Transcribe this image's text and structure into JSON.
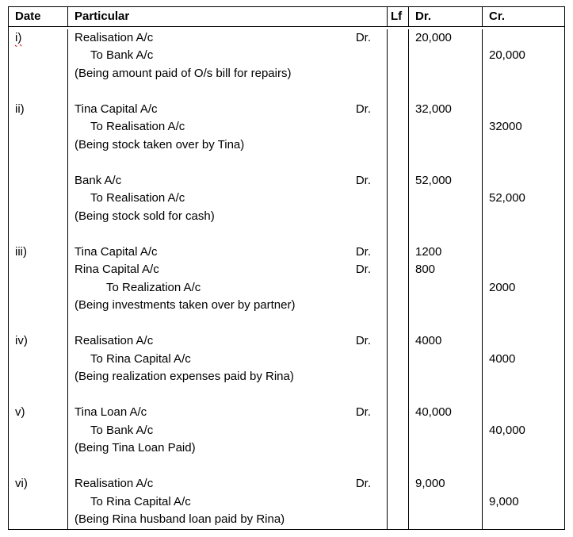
{
  "table": {
    "headers": {
      "date": "Date",
      "particular": "Particular",
      "lf": "Lf",
      "dr": "Dr.",
      "cr": "Cr."
    },
    "lines": [
      {
        "date": "i)",
        "particular": "Realisation A/c",
        "dr_marker": "Dr.",
        "dr": "20,000",
        "cr": "",
        "indent": 0,
        "spellcheck_underline": true
      },
      {
        "date": "",
        "particular": "To Bank A/c",
        "dr_marker": "",
        "dr": "",
        "cr": "20,000",
        "indent": 1
      },
      {
        "date": "",
        "particular": "(Being amount paid of O/s bill for repairs)",
        "dr_marker": "",
        "dr": "",
        "cr": "",
        "indent": 0
      },
      {
        "blank": true
      },
      {
        "date": "ii)",
        "particular": "Tina Capital A/c",
        "dr_marker": "Dr.",
        "dr": "32,000",
        "cr": "",
        "indent": 0
      },
      {
        "date": "",
        "particular": "To Realisation A/c",
        "dr_marker": "",
        "dr": "",
        "cr": "32000",
        "indent": 1
      },
      {
        "date": "",
        "particular": "(Being stock taken over by Tina)",
        "dr_marker": "",
        "dr": "",
        "cr": "",
        "indent": 0
      },
      {
        "blank": true
      },
      {
        "date": "",
        "particular": "Bank A/c",
        "dr_marker": "Dr.",
        "dr": "52,000",
        "cr": "",
        "indent": 0
      },
      {
        "date": "",
        "particular": "To Realisation A/c",
        "dr_marker": "",
        "dr": "",
        "cr": "52,000",
        "indent": 1
      },
      {
        "date": "",
        "particular": "(Being stock sold for cash)",
        "dr_marker": "",
        "dr": "",
        "cr": "",
        "indent": 0
      },
      {
        "blank": true
      },
      {
        "date": "iii)",
        "particular": "Tina Capital A/c",
        "dr_marker": "Dr.",
        "dr": "1200",
        "cr": "",
        "indent": 0
      },
      {
        "date": "",
        "particular": "Rina Capital A/c",
        "dr_marker": "Dr.",
        "dr": "800",
        "cr": "",
        "indent": 0
      },
      {
        "date": "",
        "particular": "To Realization A/c",
        "dr_marker": "",
        "dr": "",
        "cr": "2000",
        "indent": 2
      },
      {
        "date": "",
        "particular": "(Being investments taken over by partner)",
        "dr_marker": "",
        "dr": "",
        "cr": "",
        "indent": 0
      },
      {
        "blank": true
      },
      {
        "date": "iv)",
        "particular": "Realisation A/c",
        "dr_marker": "Dr.",
        "dr": "4000",
        "cr": "",
        "indent": 0
      },
      {
        "date": "",
        "particular": "To Rina Capital A/c",
        "dr_marker": "",
        "dr": "",
        "cr": "4000",
        "indent": 1
      },
      {
        "date": "",
        "particular": "(Being realization expenses paid by Rina)",
        "dr_marker": "",
        "dr": "",
        "cr": "",
        "indent": 0
      },
      {
        "blank": true
      },
      {
        "date": "v)",
        "particular": "Tina Loan A/c",
        "dr_marker": "Dr.",
        "dr": "40,000",
        "cr": "",
        "indent": 0
      },
      {
        "date": "",
        "particular": "To Bank A/c",
        "dr_marker": "",
        "dr": "",
        "cr": "40,000",
        "indent": 1
      },
      {
        "date": "",
        "particular": "(Being Tina Loan Paid)",
        "dr_marker": "",
        "dr": "",
        "cr": "",
        "indent": 0
      },
      {
        "blank": true
      },
      {
        "date": "vi)",
        "particular": "Realisation A/c",
        "dr_marker": "Dr.",
        "dr": "9,000",
        "cr": "",
        "indent": 0
      },
      {
        "date": "",
        "particular": "To Rina Capital A/c",
        "dr_marker": "",
        "dr": "",
        "cr": "9,000",
        "indent": 1
      },
      {
        "date": "",
        "particular": "(Being Rina husband loan paid by Rina)",
        "dr_marker": "",
        "dr": "",
        "cr": "",
        "indent": 0
      }
    ]
  }
}
